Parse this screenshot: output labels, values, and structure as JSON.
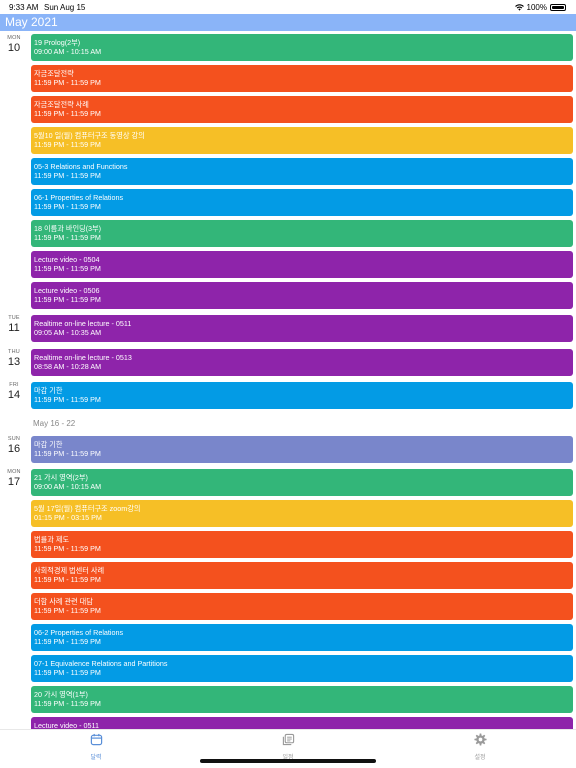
{
  "status": {
    "time": "9:33 AM",
    "date": "Sun Aug 15",
    "battery": "100%"
  },
  "header": {
    "month_title": "May 2021"
  },
  "days": [
    {
      "dow": "MON",
      "num": "10"
    },
    {
      "dow": "TUE",
      "num": "11"
    },
    {
      "dow": "THU",
      "num": "13"
    },
    {
      "dow": "FRI",
      "num": "14"
    },
    {
      "dow": "SUN",
      "num": "16"
    },
    {
      "dow": "MON",
      "num": "17"
    }
  ],
  "week_label": "May 16 - 22",
  "events": [
    {
      "title": "19 Prolog(2부)",
      "time": "09:00 AM - 10:15 AM",
      "color": "#33b679"
    },
    {
      "title": "자금조달전략",
      "time": "11:59 PM - 11:59 PM",
      "color": "#f4511e"
    },
    {
      "title": "자금조달전략 사례",
      "time": "11:59 PM - 11:59 PM",
      "color": "#f4511e"
    },
    {
      "title": "5월10 일(월) 컴퓨터구조 동영상 강의",
      "time": "11:59 PM - 11:59 PM",
      "color": "#f6bf26"
    },
    {
      "title": "05-3 Relations and Functions",
      "time": "11:59 PM - 11:59 PM",
      "color": "#039be5"
    },
    {
      "title": "06-1 Properties of Relations",
      "time": "11:59 PM - 11:59 PM",
      "color": "#039be5"
    },
    {
      "title": "18 이름과 바인딩(3부)",
      "time": "11:59 PM - 11:59 PM",
      "color": "#33b679"
    },
    {
      "title": "Lecture video - 0504",
      "time": "11:59 PM - 11:59 PM",
      "color": "#8e24aa"
    },
    {
      "title": "Lecture video - 0506",
      "time": "11:59 PM - 11:59 PM",
      "color": "#8e24aa"
    },
    {
      "title": "Realtime on-line lecture - 0511",
      "time": "09:05 AM - 10:35 AM",
      "color": "#8e24aa"
    },
    {
      "title": "Realtime on-line lecture - 0513",
      "time": "08:58 AM - 10:28 AM",
      "color": "#8e24aa"
    },
    {
      "title": "마감 기한",
      "time": "11:59 PM - 11:59 PM",
      "color": "#039be5"
    },
    {
      "title": "마감 기한",
      "time": "11:59 PM - 11:59 PM",
      "color": "#7986cb"
    },
    {
      "title": "21 가시 영역(2부)",
      "time": "09:00 AM - 10:15 AM",
      "color": "#33b679"
    },
    {
      "title": "5월 17일(월) 컴퓨터구조 zoom강의",
      "time": "01:15 PM - 03:15 PM",
      "color": "#f6bf26"
    },
    {
      "title": "법률과 제도",
      "time": "11:59 PM - 11:59 PM",
      "color": "#f4511e"
    },
    {
      "title": "사회적경제 법센터 사례",
      "time": "11:59 PM - 11:59 PM",
      "color": "#f4511e"
    },
    {
      "title": "더함 사례 관련 대담",
      "time": "11:59 PM - 11:59 PM",
      "color": "#f4511e"
    },
    {
      "title": "06-2 Properties of Relations",
      "time": "11:59 PM - 11:59 PM",
      "color": "#039be5"
    },
    {
      "title": "07-1 Equivalence Relations and Partitions",
      "time": "11:59 PM - 11:59 PM",
      "color": "#039be5"
    },
    {
      "title": "20 가시 영역(1부)",
      "time": "11:59 PM - 11:59 PM",
      "color": "#33b679"
    },
    {
      "title": "Lecture video - 0511",
      "time": "",
      "color": "#8e24aa"
    }
  ],
  "tabs": [
    {
      "label": "달력",
      "icon": "calendar-icon"
    },
    {
      "label": "일정",
      "icon": "list-icon"
    },
    {
      "label": "설정",
      "icon": "gear-icon"
    }
  ]
}
